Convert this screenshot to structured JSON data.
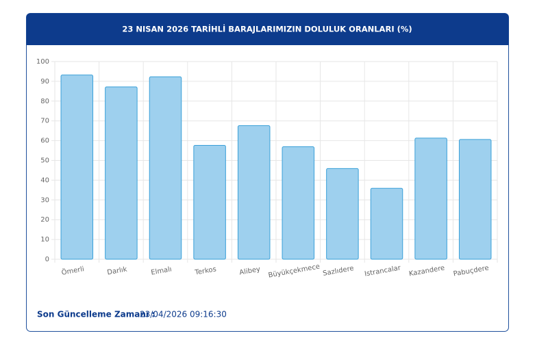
{
  "chart_data": {
    "type": "bar",
    "title": "23 NISAN 2026 TARİHLİ BARAJLARIMIZIN DOLULUK ORANLARI (%)",
    "categories": [
      "Ömerli",
      "Darlık",
      "Elmalı",
      "Terkos",
      "Alibey",
      "Büyükçekmece",
      "Sazlıdere",
      "Istrancalar",
      "Kazandere",
      "Pabuçdere"
    ],
    "values": [
      93.2,
      87.2,
      92.3,
      57.6,
      67.6,
      56.9,
      45.9,
      35.9,
      61.3,
      60.6
    ],
    "color": "#9ed0ee",
    "ylim": [
      0,
      100
    ],
    "yticks": [
      0,
      10,
      20,
      30,
      40,
      50,
      60,
      70,
      80,
      90,
      100
    ],
    "grid": true
  },
  "footer": {
    "label": "Son Güncelleme Zamanı :",
    "value": "23/04/2026 09:16:30"
  }
}
